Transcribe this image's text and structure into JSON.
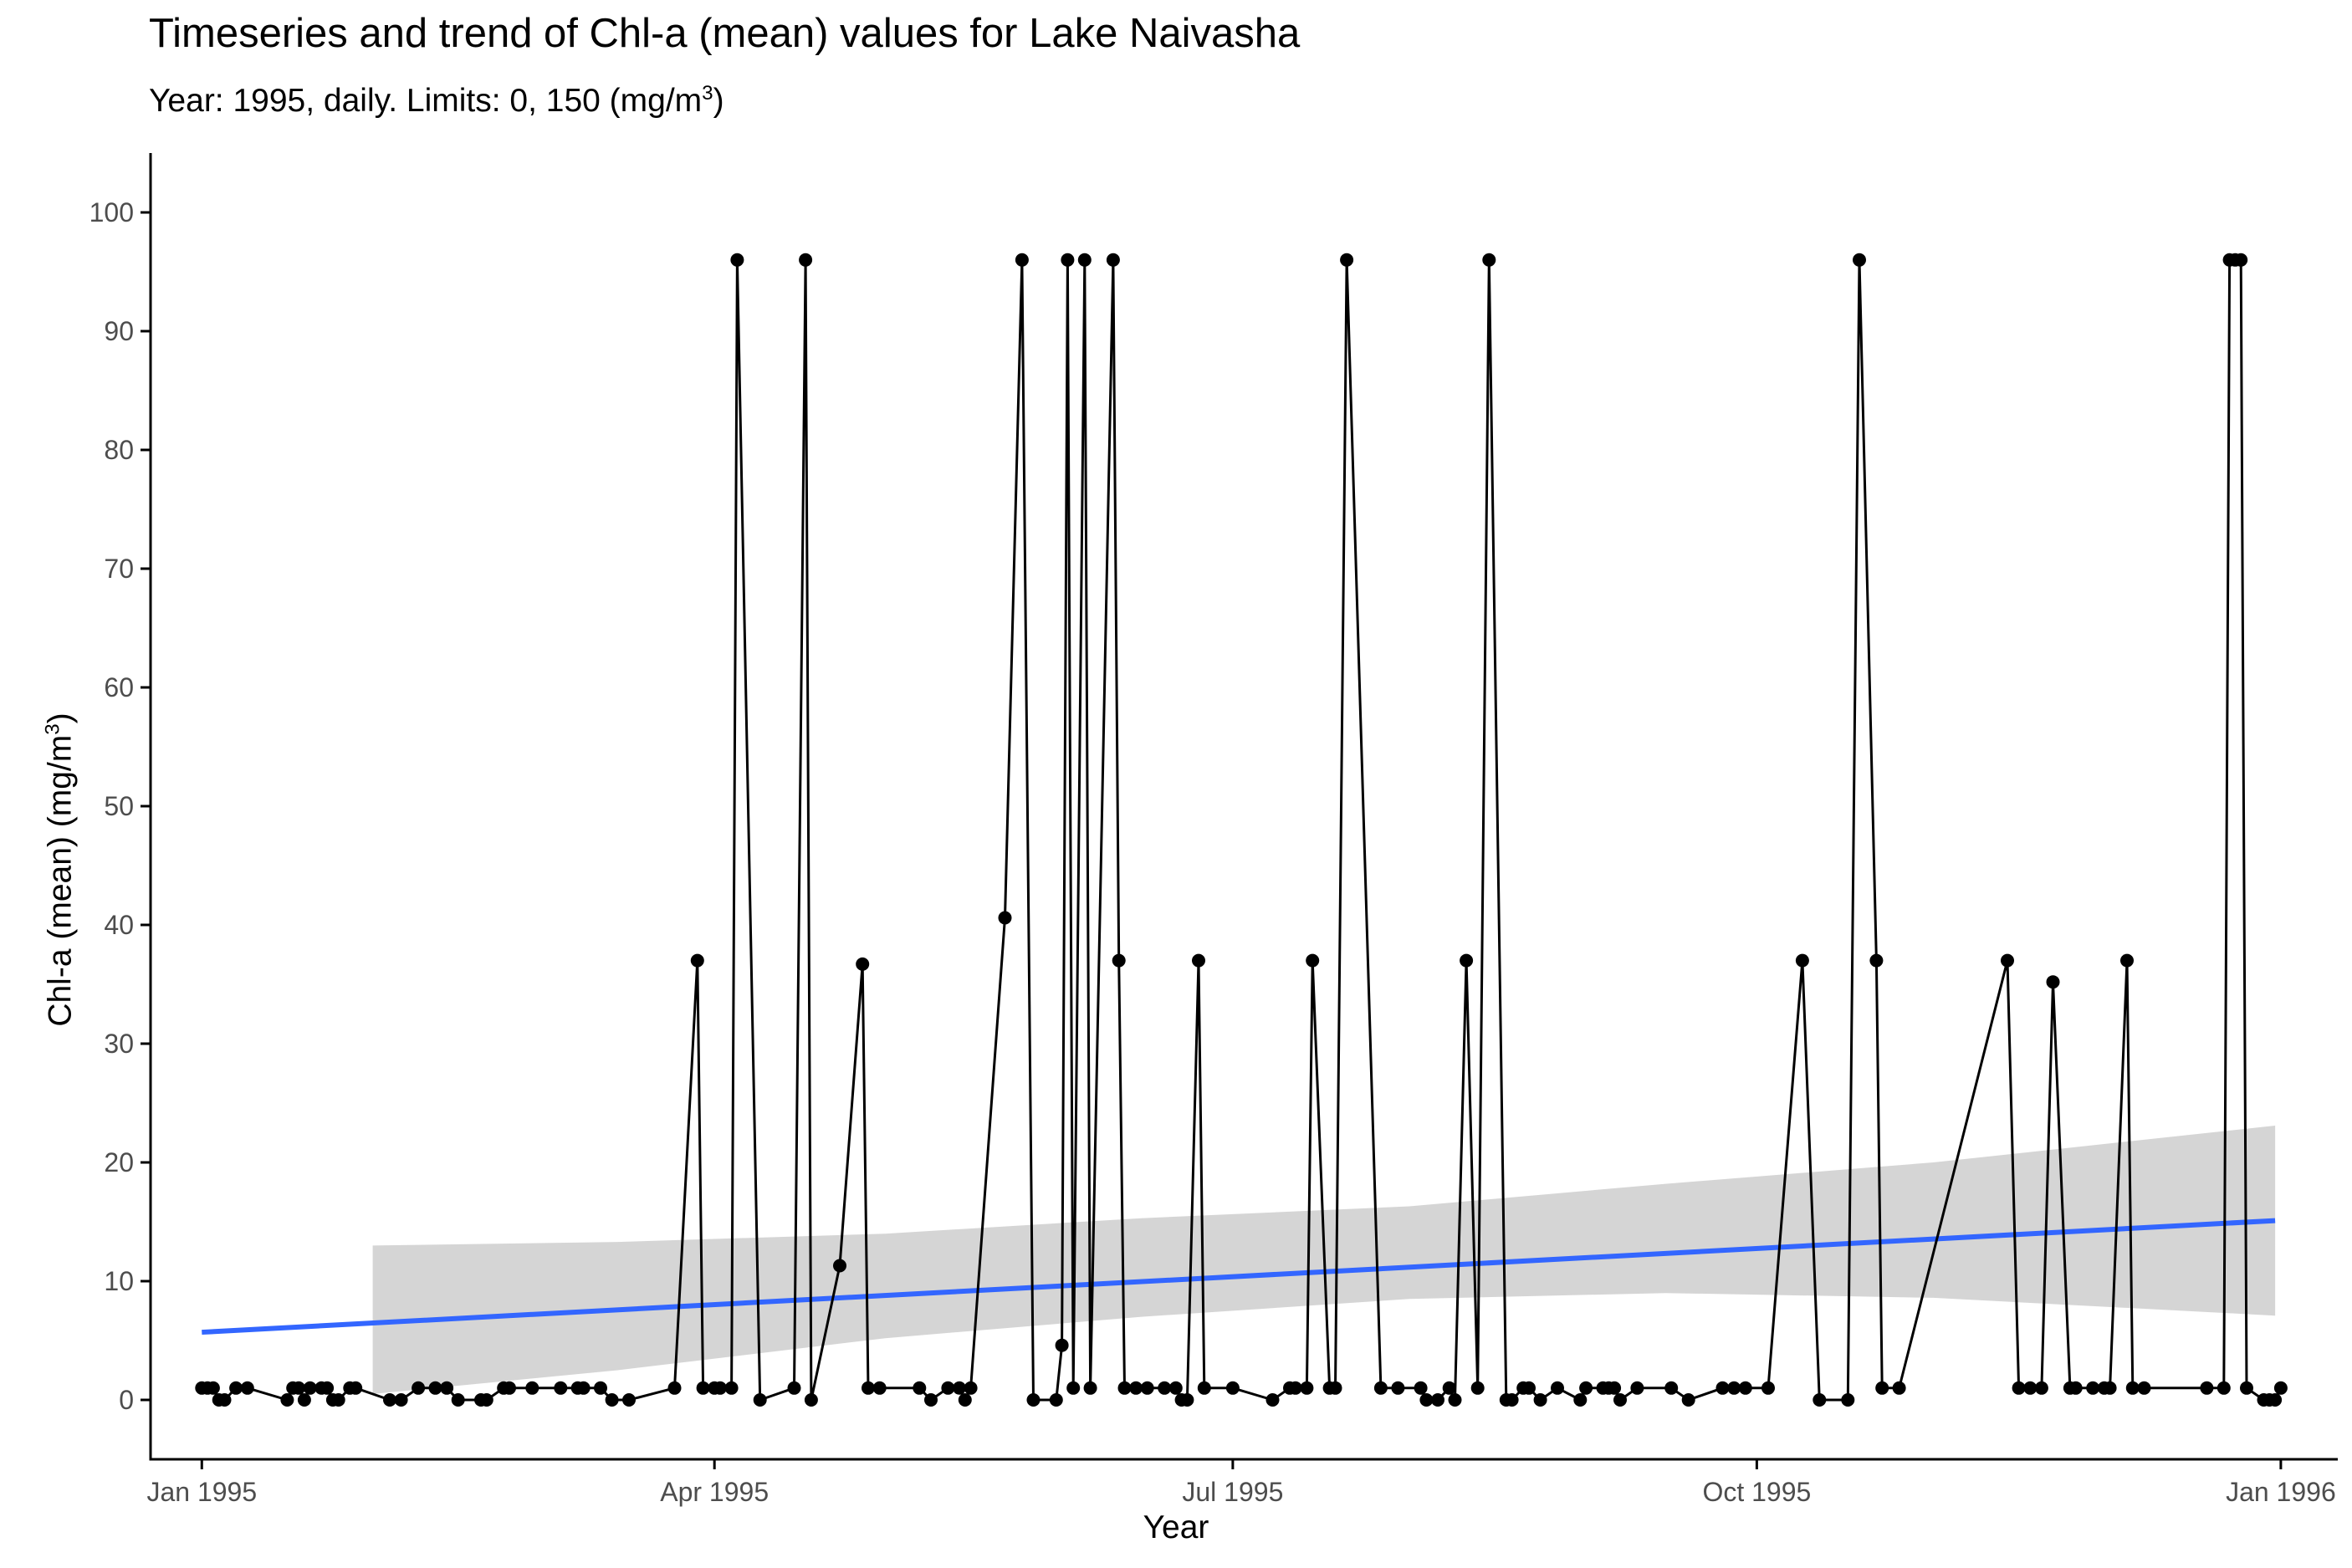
{
  "chart_data": {
    "type": "line",
    "title": "Timeseries and trend of Chl-a (mean) values for Lake Naivasha",
    "subtitle": {
      "main": "Year: 1995, daily. Limits: 0, 150 (mg/m",
      "sup": "3",
      "end": ")"
    },
    "xlabel": "Year",
    "ylabel": {
      "main": "Chl-a (mean) (mg/m",
      "sup": "3",
      "end": ")"
    },
    "xlim": [
      "1994-12-23",
      "1996-01-11"
    ],
    "ylim": [
      -5,
      105
    ],
    "x_ticks": [
      {
        "date": "1995-01-01",
        "label": "Jan 1995"
      },
      {
        "date": "1995-04-01",
        "label": "Apr 1995"
      },
      {
        "date": "1995-07-01",
        "label": "Jul 1995"
      },
      {
        "date": "1995-10-01",
        "label": "Oct 1995"
      },
      {
        "date": "1996-01-01",
        "label": "Jan 1996"
      }
    ],
    "y_ticks": [
      0,
      10,
      20,
      30,
      40,
      50,
      60,
      70,
      80,
      90,
      100
    ],
    "grid": false,
    "colors": {
      "series": "#000000",
      "trend": "#3366ff",
      "ribbon": "#d3d3d3",
      "axis": "#000000",
      "tick_label": "#4d4d4d"
    },
    "series": [
      {
        "values": [
          [
            "1995-01-01",
            1
          ],
          [
            "1995-01-02",
            1
          ],
          [
            "1995-01-03",
            1
          ],
          [
            "1995-01-04",
            0
          ],
          [
            "1995-01-05",
            0
          ],
          [
            "1995-01-07",
            1
          ],
          [
            "1995-01-09",
            1
          ],
          [
            "1995-01-16",
            0
          ],
          [
            "1995-01-17",
            1
          ],
          [
            "1995-01-18",
            1
          ],
          [
            "1995-01-19",
            0
          ],
          [
            "1995-01-20",
            1
          ],
          [
            "1995-01-22",
            1
          ],
          [
            "1995-01-23",
            1
          ],
          [
            "1995-01-24",
            0
          ],
          [
            "1995-01-25",
            0
          ],
          [
            "1995-01-27",
            1
          ],
          [
            "1995-01-28",
            1
          ],
          [
            "1995-02-03",
            0
          ],
          [
            "1995-02-05",
            0
          ],
          [
            "1995-02-08",
            1
          ],
          [
            "1995-02-11",
            1
          ],
          [
            "1995-02-13",
            1
          ],
          [
            "1995-02-15",
            0
          ],
          [
            "1995-02-19",
            0
          ],
          [
            "1995-02-20",
            0
          ],
          [
            "1995-02-23",
            1
          ],
          [
            "1995-02-24",
            1
          ],
          [
            "1995-02-28",
            1
          ],
          [
            "1995-03-05",
            1
          ],
          [
            "1995-03-08",
            1
          ],
          [
            "1995-03-09",
            1
          ],
          [
            "1995-03-12",
            1
          ],
          [
            "1995-03-14",
            0
          ],
          [
            "1995-03-17",
            0
          ],
          [
            "1995-03-25",
            1
          ],
          [
            "1995-03-29",
            37
          ],
          [
            "1995-03-30",
            1
          ],
          [
            "1995-04-01",
            1
          ],
          [
            "1995-04-02",
            1
          ],
          [
            "1995-04-04",
            1
          ],
          [
            "1995-04-05",
            96
          ],
          [
            "1995-04-09",
            0
          ],
          [
            "1995-04-15",
            1
          ],
          [
            "1995-04-17",
            96
          ],
          [
            "1995-04-18",
            0
          ],
          [
            "1995-04-23",
            11.3
          ],
          [
            "1995-04-27",
            36.7
          ],
          [
            "1995-04-28",
            1
          ],
          [
            "1995-04-30",
            1
          ],
          [
            "1995-05-07",
            1
          ],
          [
            "1995-05-09",
            0
          ],
          [
            "1995-05-12",
            1
          ],
          [
            "1995-05-14",
            1
          ],
          [
            "1995-05-15",
            0
          ],
          [
            "1995-05-16",
            1
          ],
          [
            "1995-05-22",
            40.6
          ],
          [
            "1995-05-25",
            96
          ],
          [
            "1995-05-27",
            0
          ],
          [
            "1995-05-31",
            0
          ],
          [
            "1995-06-01",
            4.6
          ],
          [
            "1995-06-02",
            96
          ],
          [
            "1995-06-03",
            1
          ],
          [
            "1995-06-05",
            96
          ],
          [
            "1995-06-06",
            1
          ],
          [
            "1995-06-10",
            96
          ],
          [
            "1995-06-11",
            37
          ],
          [
            "1995-06-12",
            1
          ],
          [
            "1995-06-14",
            1
          ],
          [
            "1995-06-16",
            1
          ],
          [
            "1995-06-19",
            1
          ],
          [
            "1995-06-21",
            1
          ],
          [
            "1995-06-22",
            0
          ],
          [
            "1995-06-23",
            0
          ],
          [
            "1995-06-25",
            37
          ],
          [
            "1995-06-26",
            1
          ],
          [
            "1995-07-01",
            1
          ],
          [
            "1995-07-08",
            0
          ],
          [
            "1995-07-11",
            1
          ],
          [
            "1995-07-12",
            1
          ],
          [
            "1995-07-14",
            1
          ],
          [
            "1995-07-15",
            37
          ],
          [
            "1995-07-18",
            1
          ],
          [
            "1995-07-19",
            1
          ],
          [
            "1995-07-21",
            96
          ],
          [
            "1995-07-27",
            1
          ],
          [
            "1995-07-30",
            1
          ],
          [
            "1995-08-03",
            1
          ],
          [
            "1995-08-04",
            0
          ],
          [
            "1995-08-06",
            0
          ],
          [
            "1995-08-08",
            1
          ],
          [
            "1995-08-09",
            0
          ],
          [
            "1995-08-11",
            37
          ],
          [
            "1995-08-13",
            1
          ],
          [
            "1995-08-15",
            96
          ],
          [
            "1995-08-18",
            0
          ],
          [
            "1995-08-19",
            0
          ],
          [
            "1995-08-21",
            1
          ],
          [
            "1995-08-22",
            1
          ],
          [
            "1995-08-24",
            0
          ],
          [
            "1995-08-27",
            1
          ],
          [
            "1995-08-31",
            0
          ],
          [
            "1995-09-01",
            1
          ],
          [
            "1995-09-04",
            1
          ],
          [
            "1995-09-05",
            1
          ],
          [
            "1995-09-06",
            1
          ],
          [
            "1995-09-07",
            0
          ],
          [
            "1995-09-10",
            1
          ],
          [
            "1995-09-16",
            1
          ],
          [
            "1995-09-19",
            0
          ],
          [
            "1995-09-25",
            1
          ],
          [
            "1995-09-27",
            1
          ],
          [
            "1995-09-29",
            1
          ],
          [
            "1995-10-03",
            1
          ],
          [
            "1995-10-09",
            37
          ],
          [
            "1995-10-12",
            0
          ],
          [
            "1995-10-17",
            0
          ],
          [
            "1995-10-19",
            96
          ],
          [
            "1995-10-22",
            37
          ],
          [
            "1995-10-23",
            1
          ],
          [
            "1995-10-26",
            1
          ],
          [
            "1995-11-14",
            37
          ],
          [
            "1995-11-16",
            1
          ],
          [
            "1995-11-18",
            1
          ],
          [
            "1995-11-20",
            1
          ],
          [
            "1995-11-22",
            35.2
          ],
          [
            "1995-11-25",
            1
          ],
          [
            "1995-11-26",
            1
          ],
          [
            "1995-11-29",
            1
          ],
          [
            "1995-12-01",
            1
          ],
          [
            "1995-12-02",
            1
          ],
          [
            "1995-12-05",
            37
          ],
          [
            "1995-12-06",
            1
          ],
          [
            "1995-12-08",
            1
          ],
          [
            "1995-12-19",
            1
          ],
          [
            "1995-12-22",
            1
          ],
          [
            "1995-12-23",
            96
          ],
          [
            "1995-12-24",
            96
          ],
          [
            "1995-12-25",
            96
          ],
          [
            "1995-12-26",
            1
          ],
          [
            "1995-12-29",
            0
          ],
          [
            "1995-12-30",
            0
          ],
          [
            "1995-12-31",
            0
          ],
          [
            "1996-01-01",
            1
          ]
        ]
      }
    ],
    "trend": {
      "start": {
        "date": "1995-01-01",
        "value": 5.7
      },
      "end": {
        "date": "1995-12-31",
        "value": 15.1
      },
      "ribbon": [
        {
          "date": "1995-01-31",
          "lower": 0.5,
          "upper": 13.0
        },
        {
          "date": "1995-03-15",
          "lower": 2.5,
          "upper": 13.3
        },
        {
          "date": "1995-05-01",
          "lower": 5.2,
          "upper": 14.0
        },
        {
          "date": "1995-06-15",
          "lower": 7.0,
          "upper": 15.3
        },
        {
          "date": "1995-08-01",
          "lower": 8.5,
          "upper": 16.3
        },
        {
          "date": "1995-09-15",
          "lower": 9.0,
          "upper": 18.2
        },
        {
          "date": "1995-11-01",
          "lower": 8.6,
          "upper": 20.0
        },
        {
          "date": "1995-12-31",
          "lower": 7.1,
          "upper": 23.1
        }
      ]
    }
  }
}
